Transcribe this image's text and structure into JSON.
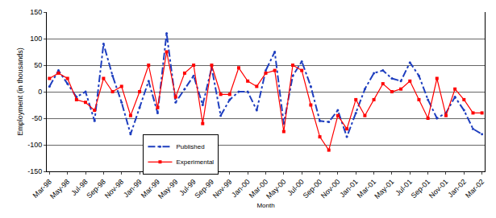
{
  "chart_data": {
    "type": "line",
    "x_label": "Month",
    "y_label": "Employment (in thousands)",
    "categories": [
      "Mar-98",
      null,
      "May-98",
      null,
      "Jul-98",
      null,
      "Sep-98",
      null,
      "Nov-98",
      null,
      "Jan-99",
      null,
      "Mar-99",
      null,
      "May-99",
      null,
      "Jul-99",
      null,
      "Sep-99",
      null,
      "Nov-99",
      null,
      "Jan-00",
      null,
      "Mar-00",
      null,
      "May-00",
      null,
      "Jul-00",
      null,
      "Sep-00",
      null,
      "Nov-00",
      null,
      "Jan-01",
      null,
      "Mar-01",
      null,
      "May-01",
      null,
      "Jul-01",
      null,
      "Sep-01",
      null,
      "Nov-01",
      null,
      "Jan-02",
      null,
      "Mar-02"
    ],
    "series": [
      {
        "name": "Published",
        "color": "#1f3fbf",
        "line_style": "dashdot",
        "marker": "circle",
        "values": [
          10,
          40,
          15,
          -10,
          0,
          -55,
          90,
          30,
          -20,
          -80,
          -30,
          20,
          -40,
          110,
          -20,
          5,
          30,
          -25,
          45,
          -45,
          -15,
          0,
          0,
          -35,
          40,
          75,
          -60,
          30,
          57,
          10,
          -55,
          -57,
          -35,
          -85,
          -40,
          5,
          35,
          40,
          25,
          20,
          55,
          30,
          -15,
          -50,
          -40,
          -10,
          -35,
          -70,
          -80
        ]
      },
      {
        "name": "Experimental",
        "color": "#ff0000",
        "line_style": "solid",
        "marker": "square",
        "values": [
          25,
          35,
          25,
          -15,
          -20,
          -35,
          25,
          0,
          10,
          -45,
          0,
          50,
          -30,
          75,
          -10,
          35,
          50,
          -60,
          50,
          -5,
          -5,
          45,
          20,
          10,
          35,
          40,
          -75,
          50,
          40,
          -25,
          -85,
          -110,
          -45,
          -70,
          -15,
          -45,
          -15,
          15,
          0,
          5,
          20,
          -15,
          -50,
          25,
          -45,
          5,
          -15,
          -40,
          -40
        ]
      }
    ],
    "ylim": [
      -150,
      150
    ],
    "yticks": [
      -150,
      -100,
      -50,
      0,
      50,
      100,
      150
    ],
    "grid": true,
    "legend": "lower left"
  }
}
